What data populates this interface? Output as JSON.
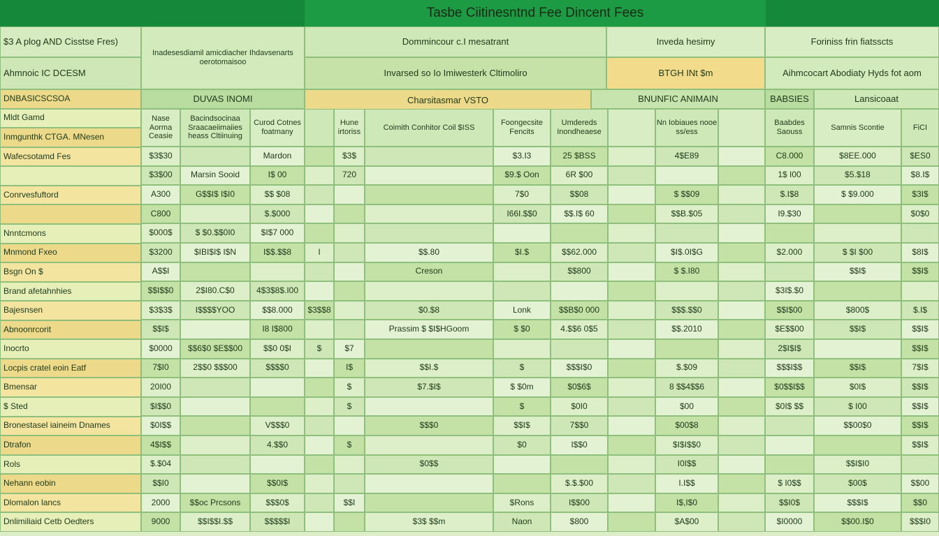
{
  "title": "Tasbe Ciitinesntnd Fee Dincent Fees",
  "left_panel": {
    "heading": "$3 A plog AND Cisstse Fres)",
    "subheading": "Ahmnoic IC DCESM",
    "rows": [
      "DNBASICSCSOA",
      "Mldt Gamd",
      "Inmgunthk CTGA. MNesen",
      "Wafecsotamd Fes",
      null,
      "Conrvesfuftord",
      null,
      "Nnntcmons",
      "Mnmond Fxeo",
      "Bsgn On $",
      "Brand afetahnhies",
      "Bajesnsen",
      "Abnoonrcorit",
      "Inocrto",
      "Locpis cratel eoin Eatf",
      "Bmensar",
      "$ Sted",
      "Bronestasel iaineim Dnames",
      "Dtrafon",
      "Rols",
      "Nehann eobin",
      "Dlomalon lancs",
      "Dnlimiliaid Cetb Oedters"
    ]
  },
  "headers": [
    "Inadesesdiamil amicdiacher Ihdavsenarts oerotomaisoo",
    "Dommincour c.I mesatrant",
    "Inveda hesimy",
    "Foriniss frin fiatsscts",
    "Invarsed so Io Imiwesterk Cltimoliro",
    "BTGH INt $m",
    "Aihmcocart Abodiaty Hyds fot aom",
    "DUVAS INOMI",
    "Charsitasmar VSTO",
    "BNUNFIC ANIMAIN",
    "BABSIES",
    "Lansicoaat"
  ],
  "column_headers": [
    "Nase Aorma Ceasie",
    "Bacindsocinaa Sraacaeiimaiies heass Cltiinuing",
    "Curod Cotnes foatmany",
    null,
    "Hune irtoriss",
    "Coimith Conhitor  Coil $ISS",
    "Foongecsite Fencits",
    "Umdereds Inondheaese",
    null,
    "Nn Iobiaues nooe ss/ess",
    null,
    "Baabdes Saouss",
    "Samnis Scontie",
    "FiCI"
  ],
  "table": {
    "rows": [
      [
        "$3$30",
        null,
        "Mardon",
        null,
        "$3$",
        null,
        "$3.I3",
        "25 $BSS",
        null,
        "4$E89",
        null,
        "C8.000",
        "$8EE.000",
        "$ES0"
      ],
      [
        "$3$00",
        "Marsin Sooid",
        "I$ 00",
        null,
        "720",
        null,
        "$9.$ Oon",
        "6R $00",
        null,
        null,
        null,
        "1$ I00",
        "$5.$18",
        "$8.I$"
      ],
      [
        "A300",
        "G$$I$ I$I0",
        "$$ $08",
        null,
        null,
        null,
        "7$0",
        "$$08",
        null,
        "$ $$09",
        null,
        "$.I$8",
        "$ $9.000",
        "$3I$"
      ],
      [
        "C800",
        null,
        "$.$000",
        null,
        null,
        null,
        "I66I.$$0",
        "$$.I$ 60",
        null,
        "$$B.$05",
        null,
        "I9.$30",
        null,
        "$0$0"
      ],
      [
        "$000$",
        "$ $0.$$0I0",
        "$I$7 000",
        null,
        null,
        null,
        null,
        null,
        null,
        null,
        null,
        null,
        null,
        null
      ],
      [
        "$3200",
        "$IBI$I$ I$N",
        "I$$.$$8",
        "I",
        null,
        "$$.80",
        "$I.$",
        "$$62.000",
        null,
        "$I$.0I$G",
        null,
        "$2.000",
        "$ $I $00",
        "$8I$"
      ],
      [
        "A$$I",
        null,
        null,
        null,
        null,
        "Creson",
        null,
        "$$800",
        null,
        "$ $.I80",
        null,
        null,
        "$$I$",
        "$$I$"
      ],
      [
        "$$I$$0",
        "2$I80.C$0",
        "4$3$8$.I00",
        null,
        null,
        null,
        null,
        null,
        null,
        null,
        null,
        "$3I$.$0",
        null,
        null
      ],
      [
        "$3$3$",
        "I$$$$YOO",
        "$$8.000",
        "$3$$8",
        null,
        "$0.$8",
        "Lonk",
        "$$B$0 000",
        null,
        "$$$.$$0",
        null,
        "$$I$00",
        "$800$",
        "$.I$"
      ],
      [
        "$$I$",
        null,
        "I8 I$800",
        null,
        null,
        "Prassim $ $I$HGoom",
        "$ $0",
        "4.$$6 0$5",
        null,
        "$$.2010",
        null,
        "$E$$00",
        "$$I$",
        "$$I$"
      ],
      [
        "$0000",
        "$$6$0 $E$$00",
        "$$0 0$I",
        "$",
        "$7",
        null,
        null,
        null,
        null,
        null,
        null,
        "2$I$I$",
        null,
        "$$I$"
      ],
      [
        "7$I0",
        "2$$0 $$$00",
        "$$$$0",
        null,
        "I$",
        "$$I.$",
        "$",
        "$$$I$0",
        null,
        "$.$09",
        null,
        "$$$I$$",
        "$$I$",
        "7$I$"
      ],
      [
        "20I00",
        null,
        null,
        null,
        "$",
        "$7.$I$",
        "$ $0m",
        "$0$6$",
        null,
        "8 $$4$$6",
        null,
        "$0$$I$$",
        "$0I$",
        "$$I$"
      ],
      [
        "$I$$0",
        null,
        null,
        null,
        "$",
        null,
        "$",
        "$0I0",
        null,
        "$00",
        null,
        "$0I$ $$",
        "$ I00",
        "$$I$"
      ],
      [
        "$0I$$",
        null,
        "V$$$0",
        null,
        null,
        "$$$0",
        "$$I$",
        "7$$0",
        null,
        "$00$8",
        null,
        null,
        "$$00$0",
        "$$I$"
      ],
      [
        "4$I$$",
        null,
        "4.$$0",
        null,
        "$",
        null,
        "$0",
        "I$$0",
        null,
        "$I$I$$0",
        null,
        null,
        null,
        "$$I$"
      ],
      [
        "$.$04",
        null,
        null,
        null,
        null,
        "$0$$",
        null,
        null,
        null,
        "I0I$$",
        null,
        null,
        "$$I$I0",
        null
      ],
      [
        "$$I0",
        null,
        "$$0I$",
        null,
        null,
        null,
        null,
        "$.$.$00",
        null,
        "I.I$$",
        null,
        "$ I0$$",
        "$00$",
        "$$00"
      ],
      [
        "2000",
        "$$oc Prcsons",
        "$$$0$",
        null,
        "$$I",
        null,
        "$Rons",
        "I$$00",
        null,
        "I$,I$0",
        null,
        "$$I0$",
        "$$$I$",
        "$$0"
      ],
      [
        "9000",
        "$$I$$I.$$",
        "$$$$$I",
        null,
        null,
        "$3$ $$m",
        "Naon",
        "$800",
        null,
        "$A$00",
        null,
        "$I0000",
        "$$00.I$0",
        "$$$I0"
      ]
    ]
  }
}
